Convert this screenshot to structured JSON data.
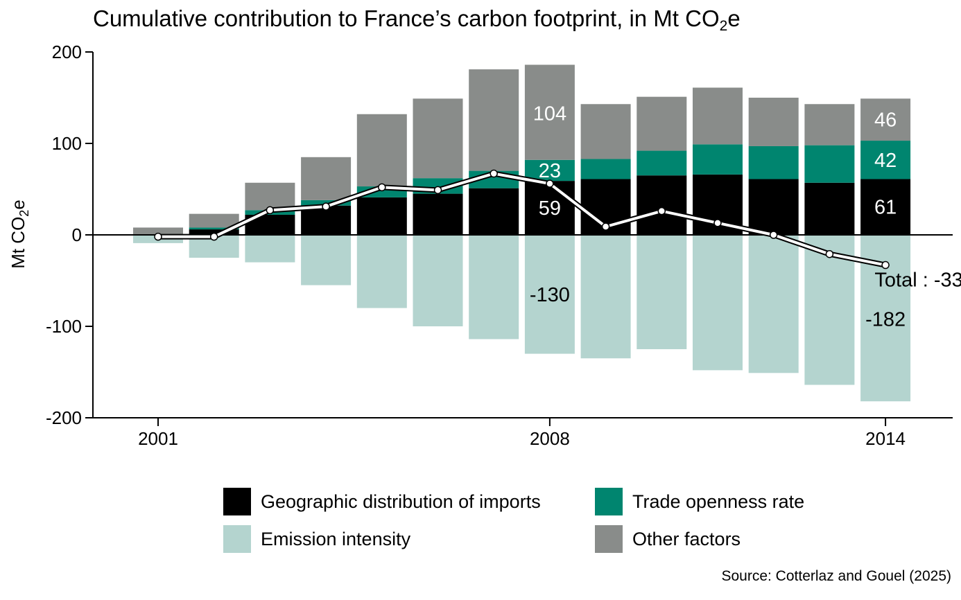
{
  "chart_data": {
    "type": "bar",
    "title": {
      "main": "Cumulative contribution to France’s carbon footprint, in Mt CO",
      "sub": "2",
      "tail": "e"
    },
    "ylabel": {
      "main": "Mt CO",
      "sub": "2",
      "tail": "e"
    },
    "ylim": [
      -200,
      200
    ],
    "yticks": [
      200,
      100,
      0,
      -100,
      -200
    ],
    "years": [
      2001,
      2002,
      2003,
      2004,
      2005,
      2006,
      2007,
      2008,
      2009,
      2010,
      2011,
      2012,
      2013,
      2014
    ],
    "xtick_labels": [
      "2001",
      "2008",
      "2014"
    ],
    "stacked": true,
    "series": [
      {
        "name": "Geographic distribution of imports",
        "color": "#000000",
        "values": [
          0,
          6,
          22,
          32,
          41,
          45,
          51,
          59,
          61,
          65,
          66,
          61,
          57,
          61
        ]
      },
      {
        "name": "Trade openness rate",
        "color": "#00856f",
        "values": [
          0,
          2,
          5,
          6,
          12,
          17,
          19,
          23,
          22,
          27,
          33,
          36,
          41,
          42
        ]
      },
      {
        "name": "Other factors",
        "color": "#898c8a",
        "values": [
          8,
          15,
          30,
          47,
          79,
          87,
          111,
          104,
          60,
          59,
          62,
          53,
          45,
          46
        ]
      },
      {
        "name": "Emission intensity",
        "color": "#b4d4cf",
        "values": [
          -9,
          -25,
          -30,
          -55,
          -80,
          -100,
          -114,
          -130,
          -135,
          -125,
          -148,
          -151,
          -164,
          -182
        ]
      }
    ],
    "total": {
      "name": "Total",
      "values": [
        -2,
        -2,
        27,
        31,
        52,
        49,
        67,
        56,
        9,
        26,
        13,
        0,
        -21,
        -33
      ]
    },
    "annotations": [
      {
        "label": "104",
        "year": 2008,
        "y": 133,
        "color": "#ffffff"
      },
      {
        "label": "23",
        "year": 2008,
        "y": 70.5,
        "color": "#ffffff"
      },
      {
        "label": "59",
        "year": 2008,
        "y": 29.5,
        "color": "#ffffff"
      },
      {
        "label": "-130",
        "year": 2008,
        "y": -65,
        "color": "#000000"
      },
      {
        "label": "46",
        "year": 2014,
        "y": 126,
        "color": "#ffffff"
      },
      {
        "label": "42",
        "year": 2014,
        "y": 82,
        "color": "#ffffff"
      },
      {
        "label": "61",
        "year": 2014,
        "y": 30.5,
        "color": "#ffffff"
      },
      {
        "label": "-182",
        "year": 2014,
        "y": -92,
        "color": "#000000"
      },
      {
        "label": "Total : -33",
        "year": 2014,
        "y": -49,
        "color": "#000000"
      }
    ],
    "legend": [
      {
        "label": "Geographic distribution of imports",
        "color": "#000000"
      },
      {
        "label": "Trade openness rate",
        "color": "#00856f"
      },
      {
        "label": "Emission intensity",
        "color": "#b4d4cf"
      },
      {
        "label": "Other factors",
        "color": "#898c8a"
      }
    ],
    "legend_position": "bottom",
    "grid": false,
    "source": "Source: Cotterlaz and Gouel (2025)"
  }
}
